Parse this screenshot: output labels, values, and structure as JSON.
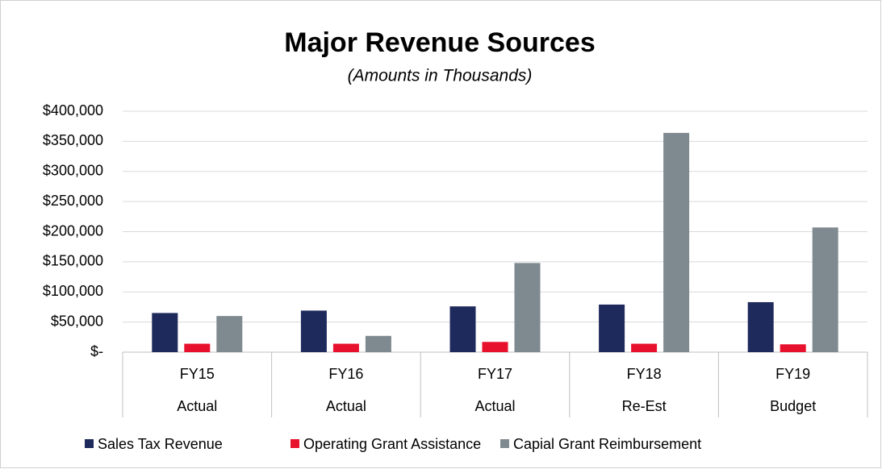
{
  "chart_data": {
    "type": "bar",
    "title": "Major Revenue Sources",
    "subtitle": "(Amounts in Thousands)",
    "categories": [
      "FY15",
      "FY16",
      "FY17",
      "FY18",
      "FY19"
    ],
    "subcategories": [
      "Actual",
      "Actual",
      "Actual",
      "Re-Est",
      "Budget"
    ],
    "series": [
      {
        "name": "Sales Tax Revenue",
        "color": "#1f2a5c",
        "values": [
          65000,
          69000,
          76000,
          79000,
          83000
        ]
      },
      {
        "name": "Operating Grant Assistance",
        "color": "#e8112d",
        "values": [
          14000,
          14000,
          17000,
          14000,
          13000
        ]
      },
      {
        "name": "Capial Grant Reimbursement",
        "color": "#7f8a90",
        "values": [
          60000,
          27000,
          148000,
          364000,
          207000
        ]
      }
    ],
    "ylim": [
      0,
      400000
    ],
    "yticks": [
      {
        "value": 0,
        "label": "$-"
      },
      {
        "value": 50000,
        "label": "$50,000"
      },
      {
        "value": 100000,
        "label": "$100,000"
      },
      {
        "value": 150000,
        "label": "$150,000"
      },
      {
        "value": 200000,
        "label": "$200,000"
      },
      {
        "value": 250000,
        "label": "$250,000"
      },
      {
        "value": 300000,
        "label": "$300,000"
      },
      {
        "value": 350000,
        "label": "$350,000"
      },
      {
        "value": 400000,
        "label": "$400,000"
      }
    ],
    "grid": true,
    "legend": "bottom"
  }
}
